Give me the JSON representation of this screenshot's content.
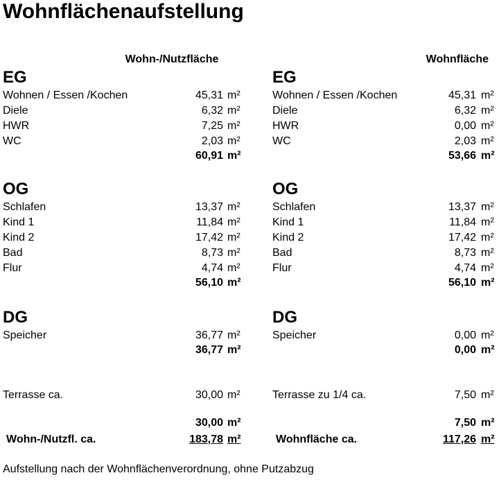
{
  "title": "Wohnflächenaufstellung",
  "unit": "m²",
  "columns": [
    {
      "header": "Wohn-/Nutzfläche",
      "sections": [
        {
          "name": "EG",
          "rows": [
            {
              "label": "Wohnen / Essen /Kochen",
              "value": "45,31"
            },
            {
              "label": "Diele",
              "value": "6,32"
            },
            {
              "label": "HWR",
              "value": "7,25"
            },
            {
              "label": "WC",
              "value": "2,03"
            }
          ],
          "subtotal": "60,91"
        },
        {
          "name": "OG",
          "rows": [
            {
              "label": "Schlafen",
              "value": "13,37"
            },
            {
              "label": "Kind 1",
              "value": "11,84"
            },
            {
              "label": "Kind 2",
              "value": "17,42"
            },
            {
              "label": "Bad",
              "value": "8,73"
            },
            {
              "label": "Flur",
              "value": "4,74"
            }
          ],
          "subtotal": "56,10"
        },
        {
          "name": "DG",
          "rows": [
            {
              "label": "Speicher",
              "value": "36,77"
            }
          ],
          "subtotal": "36,77"
        }
      ],
      "terrace": {
        "label": "Terrasse ca.",
        "value": "30,00",
        "subtotal": "30,00"
      },
      "total": {
        "label": "Wohn-/Nutzfl. ca.",
        "value": "183,78"
      }
    },
    {
      "header": "Wohnfläche",
      "sections": [
        {
          "name": "EG",
          "rows": [
            {
              "label": "Wohnen / Essen /Kochen",
              "value": "45,31"
            },
            {
              "label": "Diele",
              "value": "6,32"
            },
            {
              "label": "HWR",
              "value": "0,00"
            },
            {
              "label": "WC",
              "value": "2,03"
            }
          ],
          "subtotal": "53,66"
        },
        {
          "name": "OG",
          "rows": [
            {
              "label": "Schlafen",
              "value": "13,37"
            },
            {
              "label": "Kind 1",
              "value": "11,84"
            },
            {
              "label": "Kind 2",
              "value": "17,42"
            },
            {
              "label": "Bad",
              "value": "8,73"
            },
            {
              "label": "Flur",
              "value": "4,74"
            }
          ],
          "subtotal": "56,10"
        },
        {
          "name": "DG",
          "rows": [
            {
              "label": "Speicher",
              "value": "0,00"
            }
          ],
          "subtotal": "0,00"
        }
      ],
      "terrace": {
        "label": "Terrasse zu 1/4 ca.",
        "value": "7,50",
        "subtotal": "7,50"
      },
      "total": {
        "label": "Wohnfläche ca.",
        "value": "117,26"
      }
    }
  ],
  "footer": "Aufstellung nach der Wohnflächenverordnung, ohne Putzabzug"
}
